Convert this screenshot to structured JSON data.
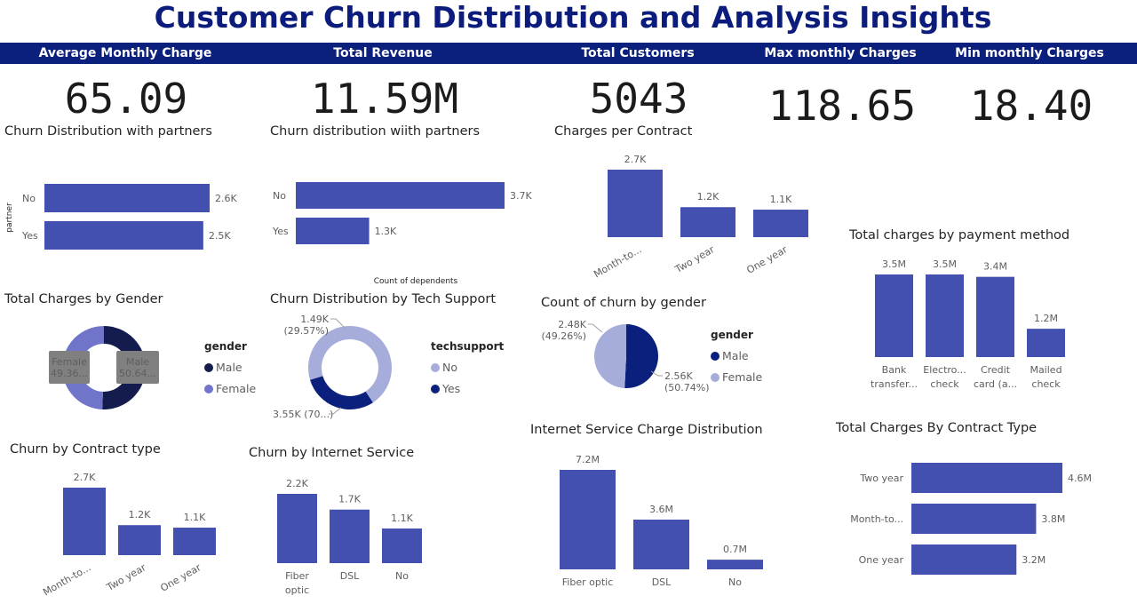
{
  "title": "Customer Churn Distribution and Analysis Insights",
  "colors": {
    "bar": "#4350af",
    "navy": "#0b1f7c",
    "dark": "#141b4d",
    "light": "#a6addb",
    "mid": "#7075c9"
  },
  "kpis": [
    {
      "label": "Average Monthly Charge",
      "value": "65.09"
    },
    {
      "label": "Total Revenue",
      "value": "11.59M"
    },
    {
      "label": "Total Customers",
      "value": "5043"
    },
    {
      "label": "Max monthly Charges",
      "value": "118.65"
    },
    {
      "label": "Min monthly Charges",
      "value": "18.40"
    }
  ],
  "visual_titles": {
    "partner1": "Churn Distribution with partners",
    "partner2": "Churn distribution wiith partners",
    "contract_charges": "Charges per Contract",
    "payment": "Total charges by payment method",
    "gender_charges": "Total Charges by Gender",
    "techsupport": "Churn Distribution by Tech Support",
    "churn_gender": "Count of churn by gender",
    "churn_contract": "Churn by Contract type",
    "internet": "Churn by Internet Service",
    "internet_charges": "Internet Service Charge Distribution",
    "contract_type_charges": "Total Charges By Contract Type"
  },
  "chart_data": [
    {
      "id": "partner1",
      "type": "bar",
      "orientation": "horizontal",
      "title": "Churn Distribution with partners",
      "ylabel": "partner",
      "categories": [
        "No",
        "Yes"
      ],
      "values": [
        2600,
        2500
      ],
      "labels": [
        "2.6K",
        "2.5K"
      ]
    },
    {
      "id": "partner2",
      "type": "bar",
      "orientation": "horizontal",
      "title": "Churn distribution wiith partners",
      "xlabel": "Count of dependents",
      "categories": [
        "No",
        "Yes"
      ],
      "values": [
        3700,
        1300
      ],
      "labels": [
        "3.7K",
        "1.3K"
      ]
    },
    {
      "id": "contract_charges",
      "type": "bar",
      "orientation": "vertical",
      "title": "Charges per Contract",
      "categories": [
        "Month-to...",
        "Two year",
        "One year"
      ],
      "values": [
        2700,
        1200,
        1100
      ],
      "labels": [
        "2.7K",
        "1.2K",
        "1.1K"
      ]
    },
    {
      "id": "payment",
      "type": "bar",
      "orientation": "vertical",
      "title": "Total charges by payment method",
      "categories": [
        "Bank transfer...",
        "Electro... check",
        "Credit card (a...",
        "Mailed check"
      ],
      "category_lines": [
        [
          "Bank",
          "transfer..."
        ],
        [
          "Electro...",
          "check"
        ],
        [
          "Credit",
          "card (a..."
        ],
        [
          "Mailed",
          "check"
        ]
      ],
      "values": [
        3500000,
        3500000,
        3400000,
        1200000
      ],
      "labels": [
        "3.5M",
        "3.5M",
        "3.4M",
        "1.2M"
      ]
    },
    {
      "id": "gender_charges",
      "type": "pie",
      "variant": "donut",
      "title": "Total Charges by Gender",
      "legend_title": "gender",
      "slices": [
        {
          "name": "Male",
          "value": 50.64,
          "label_lines": [
            "Male",
            "50.64..."
          ]
        },
        {
          "name": "Female",
          "value": 49.36,
          "label_lines": [
            "Female",
            "49.36..."
          ]
        }
      ]
    },
    {
      "id": "techsupport",
      "type": "pie",
      "variant": "donut",
      "title": "Churn Distribution by Tech Support",
      "legend_title": "techsupport",
      "slices": [
        {
          "name": "No",
          "value": 3550,
          "label_lines": [
            "3.55K (70...)"
          ]
        },
        {
          "name": "Yes",
          "value": 1490,
          "label_lines": [
            "1.49K",
            "(29.57%)"
          ]
        }
      ]
    },
    {
      "id": "churn_gender",
      "type": "pie",
      "title": "Count of churn by gender",
      "legend_title": "gender",
      "slices": [
        {
          "name": "Male",
          "value": 2560,
          "label_lines": [
            "2.56K",
            "(50.74%)"
          ]
        },
        {
          "name": "Female",
          "value": 2480,
          "label_lines": [
            "2.48K",
            "(49.26%)"
          ]
        }
      ]
    },
    {
      "id": "churn_contract",
      "type": "bar",
      "orientation": "vertical",
      "title": "Churn by Contract type",
      "categories": [
        "Month-to...",
        "Two year",
        "One year"
      ],
      "values": [
        2700,
        1200,
        1100
      ],
      "labels": [
        "2.7K",
        "1.2K",
        "1.1K"
      ]
    },
    {
      "id": "internet",
      "type": "bar",
      "orientation": "vertical",
      "title": "Churn by Internet Service",
      "categories": [
        "Fiber optic",
        "DSL",
        "No"
      ],
      "category_lines": [
        [
          "Fiber",
          "optic"
        ],
        [
          "DSL"
        ],
        [
          "No"
        ]
      ],
      "values": [
        2200,
        1700,
        1100
      ],
      "labels": [
        "2.2K",
        "1.7K",
        "1.1K"
      ]
    },
    {
      "id": "internet_charges",
      "type": "bar",
      "orientation": "vertical",
      "title": "Internet Service Charge Distribution",
      "categories": [
        "Fiber optic",
        "DSL",
        "No"
      ],
      "values": [
        7200000,
        3600000,
        700000
      ],
      "labels": [
        "7.2M",
        "3.6M",
        "0.7M"
      ]
    },
    {
      "id": "contract_type_charges",
      "type": "bar",
      "orientation": "horizontal",
      "title": "Total Charges By Contract Type",
      "categories": [
        "Two year",
        "Month-to...",
        "One year"
      ],
      "values": [
        4600000,
        3800000,
        3200000
      ],
      "labels": [
        "4.6M",
        "3.8M",
        "3.2M"
      ]
    }
  ]
}
